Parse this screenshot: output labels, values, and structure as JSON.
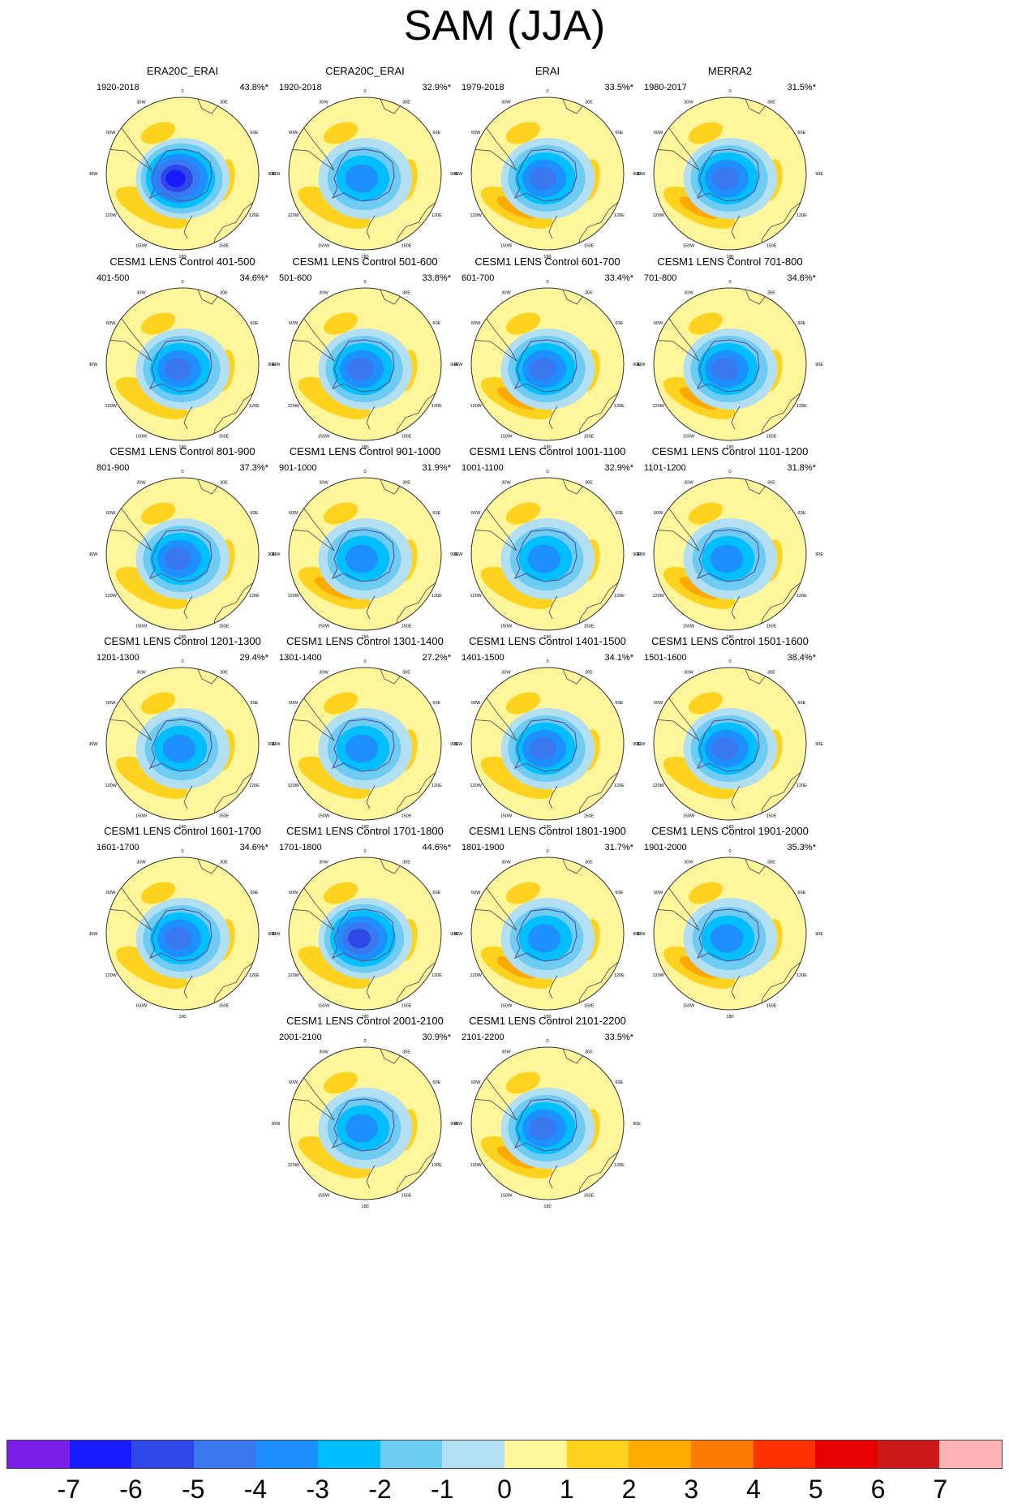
{
  "title": "SAM (JJA)",
  "colors": {
    "frame": "#333333",
    "coast": "#555555",
    "antarctica": "#5a5a9a"
  },
  "chart_data": {
    "type": "map",
    "projection": "south-polar-stereographic",
    "field_levels": [
      "-7",
      "-6",
      "-5",
      "-4",
      "-3",
      "-2",
      "-1",
      "0",
      "1",
      "2",
      "3",
      "4",
      "5",
      "6",
      "7"
    ],
    "color_scale": [
      "#7b1fe8",
      "#1a1aff",
      "#2f47e6",
      "#3a78f0",
      "#1e8fff",
      "#00bfff",
      "#6ecbf2",
      "#b3dff2",
      "#fff59a",
      "#ffd21f",
      "#ffaa00",
      "#ff7a00",
      "#ff3300",
      "#e60000",
      "#cc1a1a",
      "#ffb3b3"
    ],
    "longitude_labels": [
      "0",
      "30E",
      "60E",
      "90E",
      "120E",
      "150E",
      "180",
      "150W",
      "120W",
      "90W",
      "60W",
      "30W"
    ],
    "panels": [
      {
        "name": "ERA20C_ERAI",
        "period": "1920-2018",
        "percent": "43.8%*",
        "min_level": -7,
        "pos_intensity": 1
      },
      {
        "name": "CERA20C_ERAI",
        "period": "1920-2018",
        "percent": "32.9%*",
        "min_level": -4,
        "pos_intensity": 0
      },
      {
        "name": "ERAI",
        "period": "1979-2018",
        "percent": "33.5%*",
        "min_level": -5,
        "pos_intensity": 2
      },
      {
        "name": "MERRA2",
        "period": "1980-2017",
        "percent": "31.5%*",
        "min_level": -5,
        "pos_intensity": 2
      },
      {
        "name": "CESM1 LENS Control 401-500",
        "period": "401-500",
        "percent": "34.6%*",
        "min_level": -5,
        "pos_intensity": 1
      },
      {
        "name": "CESM1 LENS Control 501-600",
        "period": "501-600",
        "percent": "33.8%*",
        "min_level": -5,
        "pos_intensity": 1
      },
      {
        "name": "CESM1 LENS Control 601-700",
        "period": "601-700",
        "percent": "33.4%*",
        "min_level": -5,
        "pos_intensity": 2
      },
      {
        "name": "CESM1 LENS Control 701-800",
        "period": "701-800",
        "percent": "34.6%*",
        "min_level": -5,
        "pos_intensity": 2
      },
      {
        "name": "CESM1 LENS Control 801-900",
        "period": "801-900",
        "percent": "37.3%*",
        "min_level": -5,
        "pos_intensity": 1
      },
      {
        "name": "CESM1 LENS Control 901-1000",
        "period": "901-1000",
        "percent": "31.9%*",
        "min_level": -4,
        "pos_intensity": 2
      },
      {
        "name": "CESM1 LENS Control 1001-1100",
        "period": "1001-1100",
        "percent": "32.9%*",
        "min_level": -4,
        "pos_intensity": 1
      },
      {
        "name": "CESM1 LENS Control 1101-1200",
        "period": "1101-1200",
        "percent": "31.8%*",
        "min_level": -4,
        "pos_intensity": 2
      },
      {
        "name": "CESM1 LENS Control 1201-1300",
        "period": "1201-1300",
        "percent": "29.4%*",
        "min_level": -4,
        "pos_intensity": 1
      },
      {
        "name": "CESM1 LENS Control 1301-1400",
        "period": "1301-1400",
        "percent": "27.2%*",
        "min_level": -4,
        "pos_intensity": 1
      },
      {
        "name": "CESM1 LENS Control 1401-1500",
        "period": "1401-1500",
        "percent": "34.1%*",
        "min_level": -5,
        "pos_intensity": 1
      },
      {
        "name": "CESM1 LENS Control 1501-1600",
        "period": "1501-1600",
        "percent": "38.4%*",
        "min_level": -5,
        "pos_intensity": 1
      },
      {
        "name": "CESM1 LENS Control 1601-1700",
        "period": "1601-1700",
        "percent": "34.6%*",
        "min_level": -5,
        "pos_intensity": 1
      },
      {
        "name": "CESM1 LENS Control 1701-1800",
        "period": "1701-1800",
        "percent": "44.6%*",
        "min_level": -6,
        "pos_intensity": 1
      },
      {
        "name": "CESM1 LENS Control 1801-1900",
        "period": "1801-1900",
        "percent": "31.7%*",
        "min_level": -4,
        "pos_intensity": 2
      },
      {
        "name": "CESM1 LENS Control 1901-2000",
        "period": "1901-2000",
        "percent": "35.3%*",
        "min_level": -4,
        "pos_intensity": 2
      },
      {
        "name": "CESM1 LENS Control 2001-2100",
        "period": "2001-2100",
        "percent": "30.9%*",
        "min_level": -4,
        "pos_intensity": 1
      },
      {
        "name": "CESM1 LENS Control 2101-2200",
        "period": "2101-2200",
        "percent": "33.5%*",
        "min_level": -5,
        "pos_intensity": 2
      }
    ]
  }
}
